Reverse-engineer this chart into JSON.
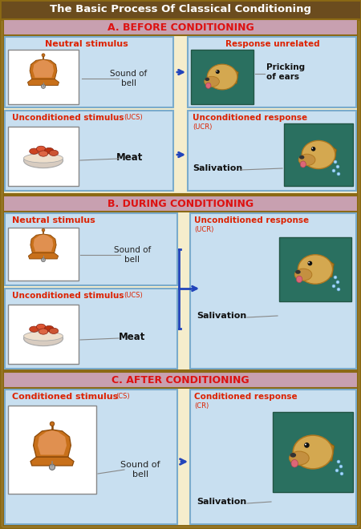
{
  "title": "The Basic Process Of Classical Conditioning",
  "title_color": "#ffffff",
  "title_bg": "#6b4c1e",
  "bg_color": "#f0e8c0",
  "outer_border_color": "#8b6914",
  "section_bg": "#f5edcc",
  "section_header_bg": "#c8a0b0",
  "section_header_color": "#dd1111",
  "section_headers": [
    "A. BEFORE CONDITIONING",
    "B. DURING CONDITIONING",
    "C. AFTER CONDITIONING"
  ],
  "left_box_bg": "#c8dff0",
  "left_box_border": "#7aabcc",
  "left_img_bg": "#ffffff",
  "right_box_bg": "#c8dff0",
  "right_box_border": "#7aabcc",
  "right_img_bg": "#2a7060",
  "label_red": "#dd2200",
  "label_black": "#111111",
  "label_yellow": "#ffdd00",
  "arrow_color": "#2244bb",
  "bell_color": "#c8701a",
  "bell_dark": "#8a4808",
  "bell_light": "#e09050",
  "dog_body": "#d4a850",
  "dog_snout": "#c49040",
  "dog_ear": "#b07820",
  "bowl_color": "#d8ccc0",
  "meat_colors": [
    "#cc4422",
    "#dd5533",
    "#bb3311",
    "#cc5533",
    "#dd6644"
  ],
  "saliva_color": "#aaddee"
}
